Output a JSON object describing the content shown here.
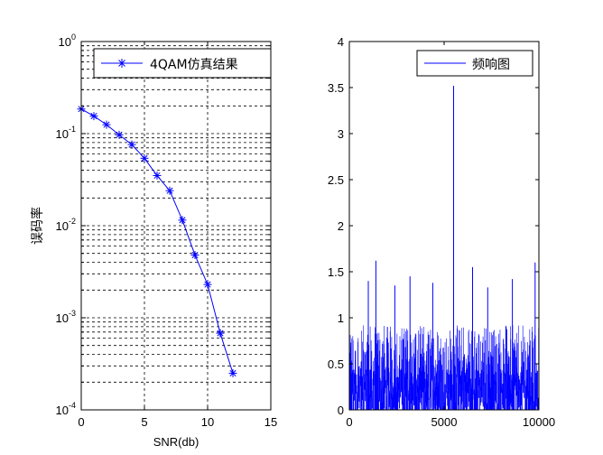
{
  "chart_data": [
    {
      "type": "line",
      "yscale": "log",
      "x": [
        0,
        1,
        2,
        3,
        4,
        5,
        6,
        7,
        8,
        9,
        10,
        11,
        12
      ],
      "series": [
        {
          "name": "4QAM仿真结果",
          "color": "#0000ff",
          "marker": "asterisk",
          "values": [
            0.185,
            0.155,
            0.125,
            0.097,
            0.076,
            0.054,
            0.035,
            0.024,
            0.0115,
            0.0048,
            0.0023,
            0.00068,
            0.00025
          ]
        }
      ],
      "xlabel": "SNR(db)",
      "ylabel": "误码率",
      "xlim": [
        0,
        15
      ],
      "ylim": [
        0.0001,
        1
      ],
      "xticks": [
        "0",
        "5",
        "10",
        "15"
      ],
      "yticks": [
        {
          "base": "10",
          "exp": "0",
          "value": 1
        },
        {
          "base": "10",
          "exp": "-1",
          "value": 0.1
        },
        {
          "base": "10",
          "exp": "-2",
          "value": 0.01
        },
        {
          "base": "10",
          "exp": "-3",
          "value": 0.001
        },
        {
          "base": "10",
          "exp": "-4",
          "value": 0.0001
        }
      ],
      "grid": true,
      "legend_position": "top-right"
    },
    {
      "type": "line",
      "xlim": [
        0,
        10000
      ],
      "ylim": [
        0,
        4
      ],
      "xticks": [
        "0",
        "5000",
        "10000"
      ],
      "yticks": [
        "0",
        "0.5",
        "1",
        "1.5",
        "2",
        "2.5",
        "3",
        "3.5",
        "4"
      ],
      "grid": false,
      "legend_position": "top-right",
      "series": [
        {
          "name": "频响图",
          "color": "#0000ff",
          "points": 10000,
          "baseline_max": 0.92,
          "peaks": [
            {
              "x": 5500,
              "y": 3.52
            },
            {
              "x": 1400,
              "y": 1.62
            },
            {
              "x": 9800,
              "y": 1.6
            },
            {
              "x": 6500,
              "y": 1.55
            },
            {
              "x": 3200,
              "y": 1.45
            },
            {
              "x": 1000,
              "y": 1.4
            },
            {
              "x": 4400,
              "y": 1.38
            },
            {
              "x": 8600,
              "y": 1.42
            },
            {
              "x": 2400,
              "y": 1.35
            },
            {
              "x": 7300,
              "y": 1.33
            }
          ]
        }
      ]
    }
  ]
}
